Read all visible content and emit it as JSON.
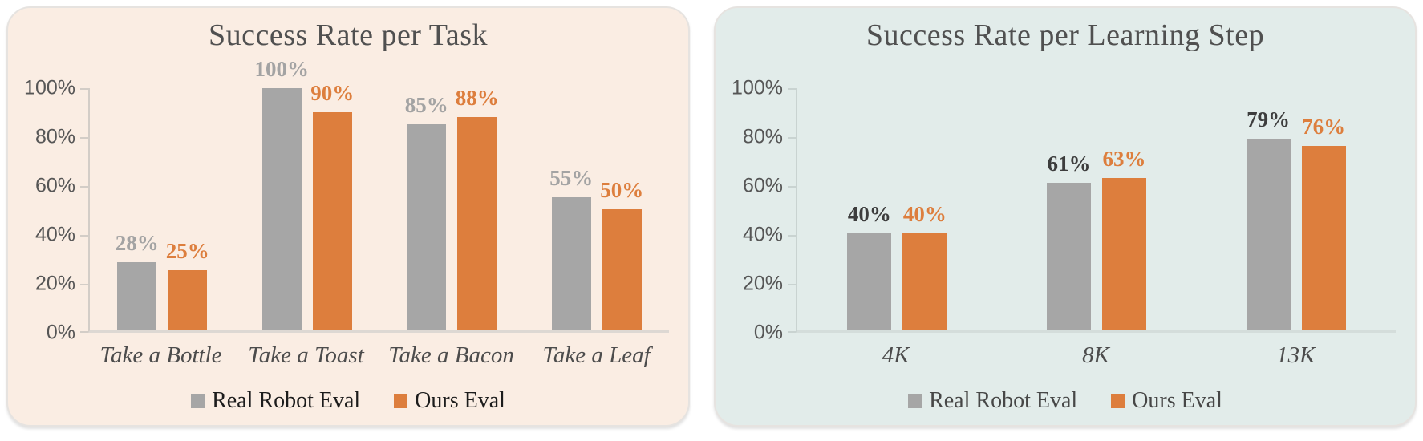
{
  "page": {
    "background": "#ffffff"
  },
  "chart_data": [
    {
      "type": "bar",
      "title": "Success Rate per Task",
      "categories": [
        "Take a Bottle",
        "Take a Toast",
        "Take a Bacon",
        "Take a Leaf"
      ],
      "series": [
        {
          "name": "Real Robot Eval",
          "color": "#a6a6a6",
          "label_color": "#a3a3a3",
          "values": [
            28,
            100,
            85,
            55
          ],
          "labels": [
            "28%",
            "100%",
            "85%",
            "55%"
          ]
        },
        {
          "name": "Ours Eval",
          "color": "#dd7e3d",
          "label_color": "#dd7e3d",
          "values": [
            25,
            90,
            88,
            50
          ],
          "labels": [
            "25%",
            "90%",
            "88%",
            "50%"
          ]
        }
      ],
      "y_ticks": [
        "100%",
        "80%",
        "60%",
        "40%",
        "20%",
        "0%"
      ],
      "ylim": [
        0,
        100
      ],
      "grid": false,
      "legend_position": "bottom",
      "panel_bg": "#faede3",
      "legend_text_color": "#1c1c1c"
    },
    {
      "type": "bar",
      "title": "Success Rate per Learning Step",
      "categories": [
        "4K",
        "8K",
        "13K"
      ],
      "series": [
        {
          "name": "Real Robot Eval",
          "color": "#a6a6a6",
          "label_color": "#3d3d3d",
          "values": [
            40,
            61,
            79
          ],
          "labels": [
            "40%",
            "61%",
            "79%"
          ]
        },
        {
          "name": "Ours Eval",
          "color": "#dd7e3d",
          "label_color": "#dd7e3d",
          "values": [
            40,
            63,
            76
          ],
          "labels": [
            "40%",
            "63%",
            "76%"
          ]
        }
      ],
      "y_ticks": [
        "100%",
        "80%",
        "60%",
        "40%",
        "20%",
        "0%"
      ],
      "ylim": [
        0,
        100
      ],
      "grid": false,
      "legend_position": "bottom",
      "panel_bg": "#e2ecea",
      "legend_text_color": "#474747"
    }
  ]
}
